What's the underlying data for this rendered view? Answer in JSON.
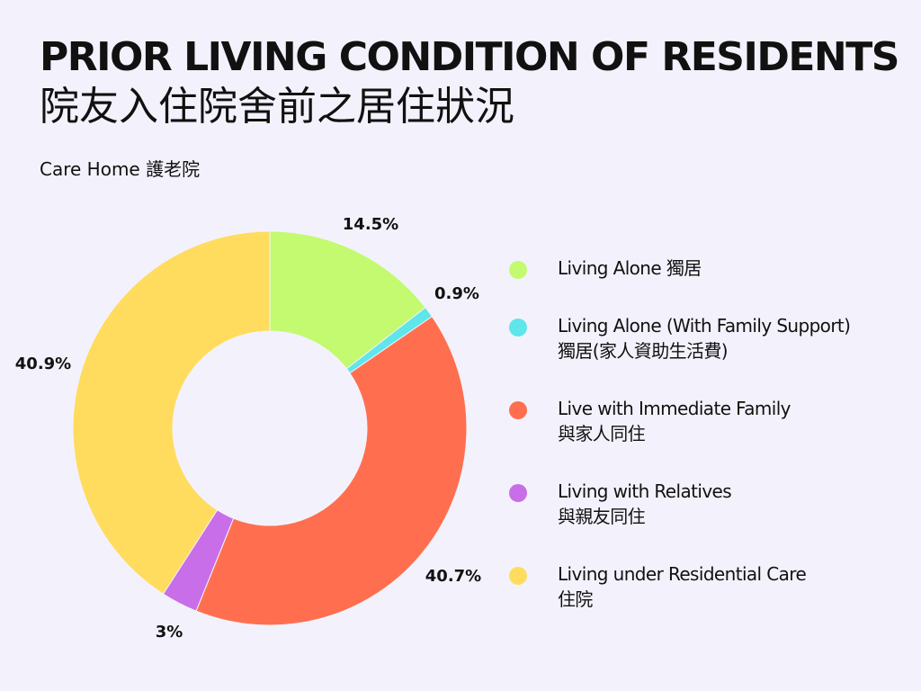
{
  "header": {
    "title": "PRIOR LIVING CONDITION OF RESIDENTS",
    "title_zh": "院友入住院舍前之居住狀況",
    "subtitle": "Care Home 護老院"
  },
  "chart_data": {
    "type": "pie",
    "donut": true,
    "title": "PRIOR LIVING CONDITION OF RESIDENTS",
    "legend_position": "right",
    "slices": [
      {
        "label": "Living Alone 獨居",
        "label_zh": "",
        "value": 14.5,
        "value_label": "14.5%",
        "color": "#c3fa70"
      },
      {
        "label": "Living Alone (With Family Support)",
        "label_zh": "獨居(家人資助生活費)",
        "value": 0.9,
        "value_label": "0.9%",
        "color": "#5ee6ea"
      },
      {
        "label": "Live with Immediate Family",
        "label_zh": "與家人同住",
        "value": 40.7,
        "value_label": "40.7%",
        "color": "#ff6f4f"
      },
      {
        "label": "Living with Relatives",
        "label_zh": "與親友同住",
        "value": 3,
        "value_label": "3%",
        "color": "#c86ee8"
      },
      {
        "label": "Living under Residential Care",
        "label_zh": "住院",
        "value": 40.9,
        "value_label": "40.9%",
        "color": "#ffdc5e"
      }
    ]
  }
}
